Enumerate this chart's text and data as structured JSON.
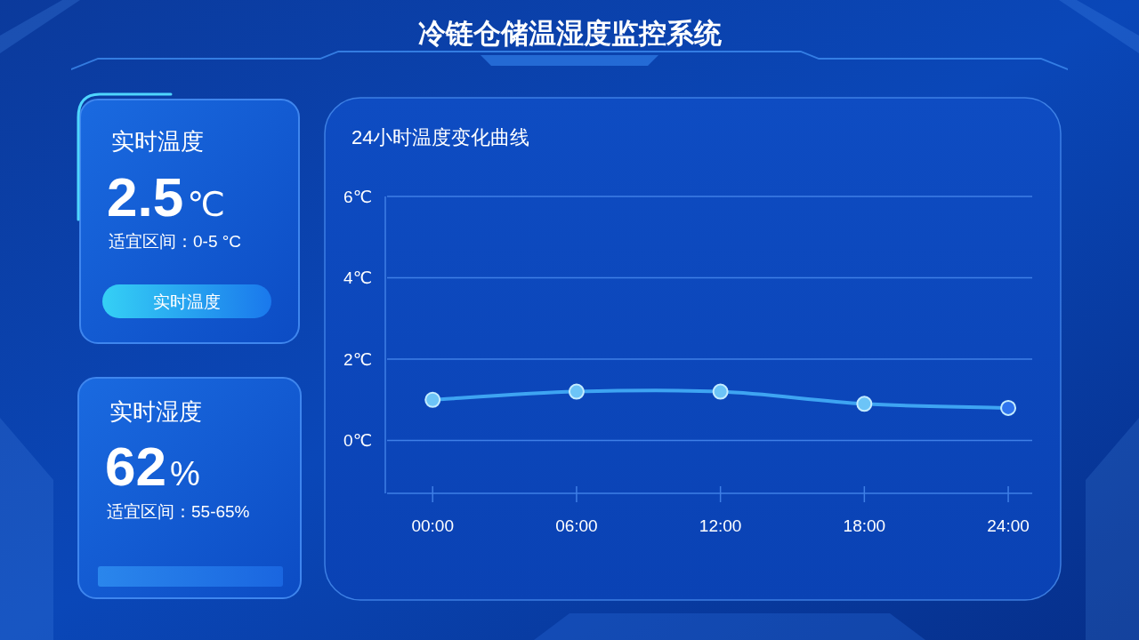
{
  "chart_data": [
    {
      "type": "other",
      "title": "冷链仓储温湿度监控系统"
    },
    {
      "type": "other",
      "title": "实时温度",
      "annotations": [
        "2.5℃",
        "适宜区间：0-5 °C",
        "实时温度"
      ]
    },
    {
      "type": "other",
      "title": "实时湿度",
      "annotations": [
        "62%",
        "适宜区间：55-65%"
      ]
    },
    {
      "type": "line",
      "title": "24小时温度变化曲线",
      "x": [
        0,
        6,
        12,
        18,
        24
      ],
      "series": [
        {
          "color": "#3ea4f2",
          "values": [
            1.0,
            1.2,
            1.2,
            0.9,
            0.8
          ],
          "colors": [
            "#6cc4f7",
            "#6cc4f7",
            "#6cc4f7",
            "#6cc4f7",
            "#2f74ee"
          ]
        }
      ],
      "xlim": [
        -1.9,
        25
      ],
      "xticks": [
        {
          "value": 0,
          "label": "00:00"
        },
        {
          "value": 6,
          "label": "06:00"
        },
        {
          "value": 12,
          "label": "12:00"
        },
        {
          "value": 18,
          "label": "18:00"
        },
        {
          "value": 24,
          "label": "24:00"
        }
      ],
      "ylim": [
        -1.3,
        6
      ],
      "yticks": [
        {
          "value": 0,
          "label": "0℃"
        },
        {
          "value": 2,
          "label": "2℃"
        },
        {
          "value": 4,
          "label": "4℃"
        },
        {
          "value": 6,
          "label": "6℃"
        }
      ],
      "grid": "y",
      "marker": "circle"
    }
  ]
}
